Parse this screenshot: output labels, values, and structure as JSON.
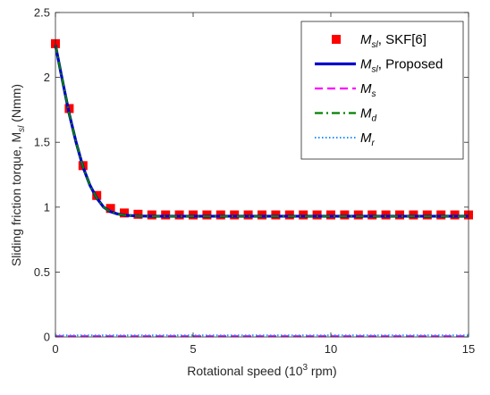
{
  "chart_data": {
    "type": "line",
    "xlabel_main": "Rotational speed (10",
    "xlabel_sup": "3",
    "xlabel_tail": " rpm)",
    "ylabel_main": "Sliding friction torque,  M",
    "ylabel_sub": "sl",
    "ylabel_tail": " (Nmm)",
    "xlim": [
      0,
      15
    ],
    "ylim": [
      0,
      2.5
    ],
    "xticks": [
      0,
      5,
      10,
      15
    ],
    "xtick_labels": [
      "0",
      "5",
      "10",
      "15"
    ],
    "yticks": [
      0,
      0.5,
      1,
      1.5,
      2,
      2.5
    ],
    "ytick_labels": [
      "0",
      "0.5",
      "1",
      "1.5",
      "2",
      "2.5"
    ],
    "grid": false,
    "legend_position": "top-right",
    "series": [
      {
        "name_base": "M",
        "name_sub": "sl",
        "name_tail": ", SKF[6]",
        "style": "square-marker",
        "color": "#ff0000",
        "x": [
          0,
          0.5,
          1,
          1.5,
          2,
          2.5,
          3,
          3.5,
          4,
          4.5,
          5,
          5.5,
          6,
          6.5,
          7,
          7.5,
          8,
          8.5,
          9,
          9.5,
          10,
          10.5,
          11,
          11.5,
          12,
          12.5,
          13,
          13.5,
          14,
          14.5,
          15
        ],
        "y": [
          2.26,
          1.76,
          1.32,
          1.09,
          0.99,
          0.955,
          0.945,
          0.94,
          0.94,
          0.94,
          0.94,
          0.94,
          0.94,
          0.94,
          0.94,
          0.94,
          0.94,
          0.94,
          0.94,
          0.94,
          0.94,
          0.94,
          0.94,
          0.94,
          0.94,
          0.94,
          0.94,
          0.94,
          0.94,
          0.94,
          0.94
        ]
      },
      {
        "name_base": "M",
        "name_sub": "sl",
        "name_tail": ", Proposed",
        "style": "solid",
        "color": "#0000cc",
        "x": [
          0,
          0.25,
          0.5,
          0.75,
          1,
          1.25,
          1.5,
          1.75,
          2,
          2.25,
          2.5,
          3,
          3.5,
          4,
          5,
          6,
          8,
          10,
          12,
          15
        ],
        "y": [
          2.25,
          1.98,
          1.72,
          1.5,
          1.31,
          1.17,
          1.07,
          1.0,
          0.965,
          0.948,
          0.938,
          0.932,
          0.93,
          0.93,
          0.93,
          0.93,
          0.93,
          0.93,
          0.93,
          0.93
        ]
      },
      {
        "name_base": "M",
        "name_sub": "s",
        "name_tail": "",
        "style": "dashed",
        "color": "#ff00ff",
        "x": [
          0,
          15
        ],
        "y": [
          0.005,
          0.005
        ]
      },
      {
        "name_base": "M",
        "name_sub": "d",
        "name_tail": "",
        "style": "dashdot",
        "color": "#008000",
        "x": [
          0,
          0.25,
          0.5,
          0.75,
          1,
          1.25,
          1.5,
          1.75,
          2,
          2.25,
          2.5,
          3,
          3.5,
          4,
          5,
          6,
          8,
          10,
          12,
          15
        ],
        "y": [
          2.25,
          1.98,
          1.72,
          1.5,
          1.31,
          1.17,
          1.07,
          1.0,
          0.965,
          0.948,
          0.938,
          0.932,
          0.93,
          0.93,
          0.93,
          0.93,
          0.93,
          0.93,
          0.93,
          0.93
        ]
      },
      {
        "name_base": "M",
        "name_sub": "r",
        "name_tail": "",
        "style": "dotted",
        "color": "#1e90ff",
        "x": [
          0,
          15
        ],
        "y": [
          0.012,
          0.012
        ]
      }
    ]
  }
}
